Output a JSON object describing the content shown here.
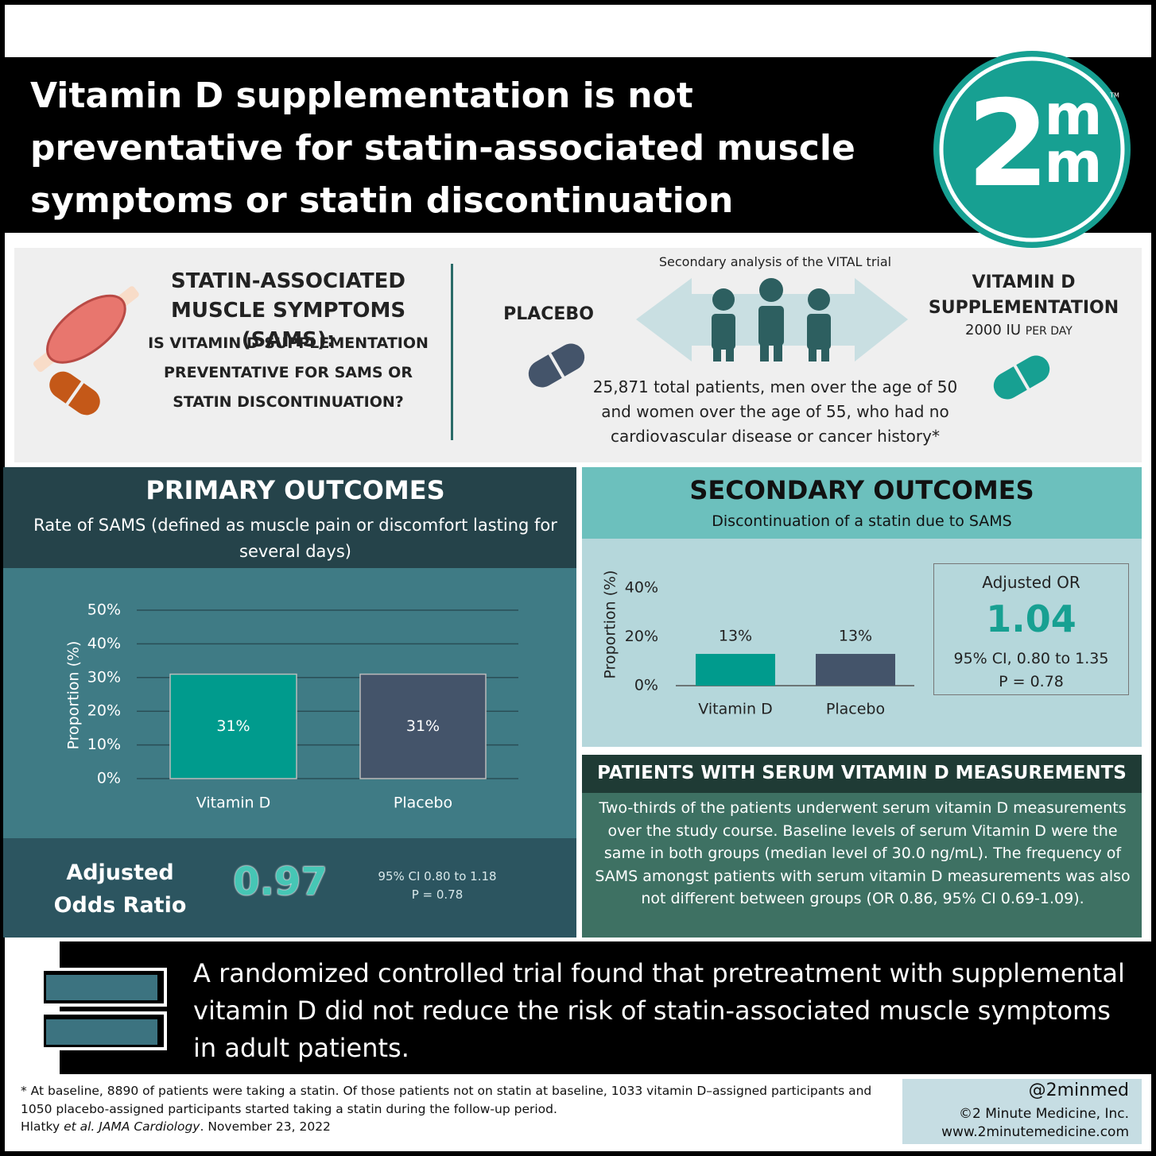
{
  "header": {
    "title": "Vitamin D supplementation is not preventative for statin-associated muscle symptoms or statin discontinuation",
    "logo": {
      "numeral": "2",
      "top": "m",
      "bottom": "m",
      "mark": "TM"
    }
  },
  "intro": {
    "heading": "STATIN-ASSOCIATED MUSCLE SYMPTOMS (SAMS):",
    "question": "IS VITAMIN D SUPPLEMENTATION PREVENTATIVE FOR SAMS OR STATIN DISCONTINUATION?"
  },
  "study": {
    "design": "Secondary analysis of the VITAL trial",
    "placebo": "PLACEBO",
    "treatment": "VITAMIN D SUPPLEMENTATION",
    "dose": "2000 IU",
    "dose_unit": "PER DAY",
    "population": "25,871 total patients, men over the age of 50 and women over the age of 55, who had no cardiovascular disease or cancer history*"
  },
  "primary": {
    "title": "PRIMARY OUTCOMES",
    "subtitle": "Rate of SAMS (defined as muscle pain or discomfort lasting for several days)",
    "or_label": "Adjusted Odds Ratio",
    "or_value": 0.97,
    "ci": "95% CI 0.80 to 1.18",
    "p": "P = 0.78"
  },
  "secondary": {
    "title": "SECONDARY OUTCOMES",
    "subtitle": "Discontinuation of a statin due to SAMS",
    "or_label": "Adjusted OR",
    "or_value": 1.04,
    "ci": "95% CI, 0.80 to 1.35",
    "p": "P = 0.78"
  },
  "chart_data": [
    {
      "type": "bar",
      "categories": [
        "Vitamin D",
        "Placebo"
      ],
      "values": [
        31,
        31
      ],
      "value_labels": [
        "31%",
        "31%"
      ],
      "colors": [
        "#009b8d",
        "#44546a"
      ],
      "y_label": "Proportion (%)",
      "ylim": [
        0,
        50
      ],
      "yticks": [
        {
          "value": 0,
          "label": "0%"
        },
        {
          "value": 10,
          "label": "10%"
        },
        {
          "value": 20,
          "label": "20%"
        },
        {
          "value": 30,
          "label": "30%"
        },
        {
          "value": 40,
          "label": "40%"
        },
        {
          "value": 50,
          "label": "50%"
        }
      ],
      "grid": true
    },
    {
      "type": "bar",
      "categories": [
        "Vitamin D",
        "Placebo"
      ],
      "values": [
        13,
        13
      ],
      "value_labels": [
        "13%",
        "13%"
      ],
      "colors": [
        "#009b8d",
        "#44546a"
      ],
      "y_label": "Proportion (%)",
      "ylim": [
        0,
        40
      ],
      "yticks": [
        {
          "value": 0,
          "label": "0%"
        },
        {
          "value": 20,
          "label": "20%"
        },
        {
          "value": 40,
          "label": "40%"
        }
      ],
      "grid": false
    }
  ],
  "serum": {
    "heading": "PATIENTS WITH SERUM VITAMIN D MEASUREMENTS",
    "body": "Two-thirds of the patients underwent serum vitamin D measurements over the study course. Baseline levels of serum Vitamin D were the same in both groups (median level of 30.0 ng/mL). The frequency of SAMS amongst patients with serum vitamin D measurements was also not different between groups (OR 0.86, 95% CI 0.69-1.09)."
  },
  "conclusion": "A randomized controlled trial found that pretreatment with supplemental vitamin D did not reduce the risk of statin-associated muscle symptoms in adult patients.",
  "footer": {
    "note": "* At baseline, 8890 of patients were taking a statin. Of those patients not on statin at baseline, 1033 vitamin D–assigned participants and 1050 placebo-assigned participants started taking a statin during the follow-up period.",
    "citation": [
      "Hlatky ",
      "et al.",
      " ",
      "JAMA Cardiology",
      ". November 23, 2022"
    ],
    "handle": "@2minmed",
    "copyright": "©2 Minute Medicine, Inc.",
    "website": "www.2minutemedicine.com"
  }
}
